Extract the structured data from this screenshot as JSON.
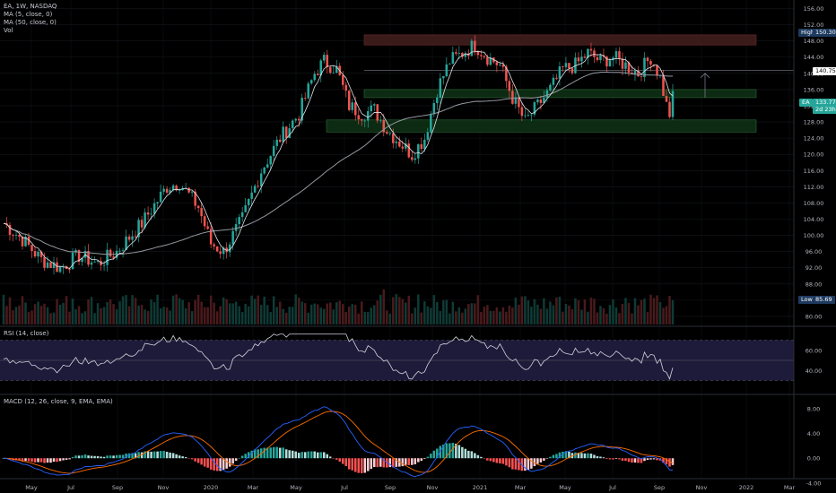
{
  "header": {
    "symbol_line": "EA, 1W, NASDAQ",
    "ma5": "MA (5, close, 0)",
    "ma50": "MA (50, close, 0)",
    "vol": "Vol",
    "rsi": "RSI (14, close)",
    "macd": "MACD (12, 26, close, 9, EMA, EMA)"
  },
  "colors": {
    "up": "#26a69a",
    "down": "#ef5350",
    "ma5": "#e0e3eb",
    "ma50": "#9598a1",
    "rsi_line": "#d1d4dc",
    "rsi_band": "#1e1a3a",
    "macd_line": "#2962ff",
    "signal_line": "#ff6d00",
    "resist_zone": "#3b1a1a",
    "support_zone": "#0d2a12"
  },
  "tags": {
    "high_label": "High",
    "high_value": "150.30",
    "low_label": "Low",
    "low_value": "85.69",
    "ticker_label": "EA",
    "price": "133.77",
    "countdown": "2d 23h",
    "target": "140.75"
  },
  "chart_data": [
    {
      "type": "candlestick",
      "title": "EA, 1W, NASDAQ",
      "x_ticks": [
        "May",
        "Jul",
        "Sep",
        "Nov",
        "2020",
        "Mar",
        "May",
        "Jul",
        "Sep",
        "Nov",
        "2021",
        "Mar",
        "May",
        "Jul",
        "Sep",
        "Nov",
        "2022",
        "Mar"
      ],
      "y_ticks": [
        80,
        84,
        88,
        92,
        96,
        100,
        104,
        108,
        112,
        116,
        120,
        124,
        128,
        132,
        136,
        140,
        144,
        148,
        152,
        156
      ],
      "ylim": [
        78,
        157
      ],
      "high": 150.3,
      "low": 85.69,
      "last": 133.77,
      "series": [
        {
          "name": "MA (5, close, 0)"
        },
        {
          "name": "MA (50, close, 0)"
        },
        {
          "name": "Vol"
        }
      ],
      "annotations": [
        {
          "type": "zone",
          "from": 147,
          "to": 149.5
        },
        {
          "type": "zone",
          "from": 134,
          "to": 136
        },
        {
          "type": "zone",
          "from": 125.5,
          "to": 128.5
        },
        {
          "type": "level",
          "value": 140.75
        }
      ]
    },
    {
      "type": "line",
      "title": "RSI (14, close)",
      "y_ticks": [
        40,
        60
      ],
      "bands": [
        30,
        70
      ]
    },
    {
      "type": "bar",
      "title": "MACD (12, 26, close, 9, EMA, EMA)",
      "y_ticks": [
        -4.0,
        0.0,
        4.0,
        8.0
      ]
    }
  ]
}
